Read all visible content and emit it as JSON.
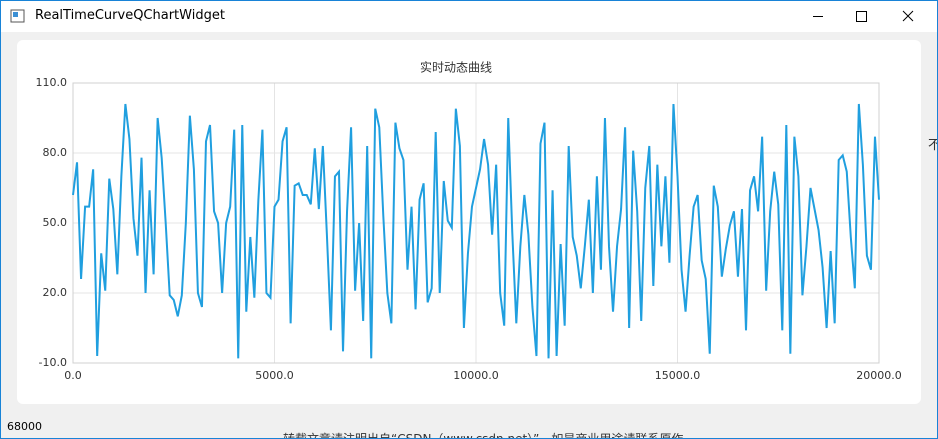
{
  "window": {
    "title": "RealTimeCurveQChartWidget",
    "status": "68000",
    "background_side": "不",
    "background_footer": "转载文章请注明出自“CSDN（www.csdn.net）”。如是商业用途请联系原作"
  },
  "chart_data": {
    "type": "line",
    "title": "实时动态曲线",
    "color": "#209fdf",
    "grid": true,
    "xlim": [
      0,
      20000
    ],
    "ylim": [
      -10,
      110
    ],
    "xticks": [
      {
        "value": 0,
        "label": "0.0"
      },
      {
        "value": 5000,
        "label": "5000.0"
      },
      {
        "value": 10000,
        "label": "10000.0"
      },
      {
        "value": 15000,
        "label": "15000.0"
      },
      {
        "value": 20000,
        "label": "20000.0"
      }
    ],
    "yticks": [
      {
        "value": -10,
        "label": "-10.0"
      },
      {
        "value": 20,
        "label": "20.0"
      },
      {
        "value": 50,
        "label": "50.0"
      },
      {
        "value": 80,
        "label": "80.0"
      },
      {
        "value": 110,
        "label": "110.0"
      }
    ],
    "x": [
      0,
      100,
      200,
      300,
      400,
      500,
      600,
      700,
      800,
      900,
      1000,
      1100,
      1200,
      1300,
      1400,
      1500,
      1600,
      1700,
      1800,
      1900,
      2000,
      2100,
      2200,
      2300,
      2400,
      2500,
      2600,
      2700,
      2800,
      2900,
      3000,
      3100,
      3200,
      3300,
      3400,
      3500,
      3600,
      3700,
      3800,
      3900,
      4000,
      4100,
      4200,
      4300,
      4400,
      4500,
      4600,
      4700,
      4800,
      4900,
      5000,
      5100,
      5200,
      5300,
      5400,
      5500,
      5600,
      5700,
      5800,
      5900,
      6000,
      6100,
      6200,
      6300,
      6400,
      6500,
      6600,
      6700,
      6800,
      6900,
      7000,
      7100,
      7200,
      7300,
      7400,
      7500,
      7600,
      7700,
      7800,
      7900,
      8000,
      8100,
      8200,
      8300,
      8400,
      8500,
      8600,
      8700,
      8800,
      8900,
      9000,
      9100,
      9200,
      9300,
      9400,
      9500,
      9600,
      9700,
      9800,
      9900,
      10000,
      10100,
      10200,
      10300,
      10400,
      10500,
      10600,
      10700,
      10800,
      10900,
      11000,
      11100,
      11200,
      11300,
      11400,
      11500,
      11600,
      11700,
      11800,
      11900,
      12000,
      12100,
      12200,
      12300,
      12400,
      12500,
      12600,
      12700,
      12800,
      12900,
      13000,
      13100,
      13200,
      13300,
      13400,
      13500,
      13600,
      13700,
      13800,
      13900,
      14000,
      14100,
      14200,
      14300,
      14400,
      14500,
      14600,
      14700,
      14800,
      14900,
      15000,
      15100,
      15200,
      15300,
      15400,
      15500,
      15600,
      15700,
      15800,
      15900,
      16000,
      16100,
      16200,
      16300,
      16400,
      16500,
      16600,
      16700,
      16800,
      16900,
      17000,
      17100,
      17200,
      17300,
      17400,
      17500,
      17600,
      17700,
      17800,
      17900,
      18000,
      18100,
      18200,
      18300,
      18400,
      18500,
      18600,
      18700,
      18800,
      18900,
      19000,
      19100,
      19200,
      19300,
      19400,
      19500,
      19600,
      19700,
      19800,
      19900,
      20000
    ],
    "values": [
      62,
      76,
      26,
      57,
      57,
      73,
      -7,
      37,
      21,
      69,
      56,
      28,
      70,
      101,
      86,
      52,
      36,
      78,
      20,
      64,
      28,
      95,
      78,
      50,
      19,
      17,
      10,
      19,
      50,
      96,
      73,
      20,
      14,
      85,
      92,
      55,
      50,
      20,
      50,
      57,
      90,
      -8,
      92,
      12,
      44,
      18,
      60,
      90,
      20,
      18,
      57,
      60,
      85,
      91,
      7,
      66,
      67,
      62,
      62,
      58,
      82,
      56,
      83,
      45,
      4,
      70,
      72,
      -5,
      55,
      91,
      21,
      50,
      8,
      83,
      -8,
      99,
      91,
      53,
      20,
      7,
      93,
      82,
      77,
      30,
      57,
      13,
      60,
      67,
      16,
      22,
      89,
      20,
      68,
      51,
      48,
      99,
      83,
      5,
      37,
      57,
      65,
      73,
      86,
      75,
      45,
      75,
      20,
      6,
      95,
      46,
      7,
      40,
      62,
      45,
      14,
      -7,
      84,
      93,
      -8,
      64,
      -7,
      41,
      6,
      83,
      44,
      36,
      22,
      40,
      60,
      20,
      70,
      30,
      95,
      40,
      12,
      40,
      56,
      91,
      5,
      81,
      55,
      8,
      65,
      83,
      23,
      75,
      40,
      70,
      33,
      101,
      70,
      30,
      12,
      36,
      57,
      62,
      34,
      26,
      -6,
      66,
      57,
      27,
      39,
      49,
      55,
      27,
      56,
      4,
      64,
      70,
      55,
      87,
      21,
      55,
      72,
      58,
      4,
      92,
      -6,
      87,
      70,
      19,
      40,
      65,
      56,
      47,
      31,
      5,
      38,
      7,
      77,
      79,
      72,
      44,
      22,
      101,
      75,
      36,
      30,
      87,
      60
    ]
  }
}
